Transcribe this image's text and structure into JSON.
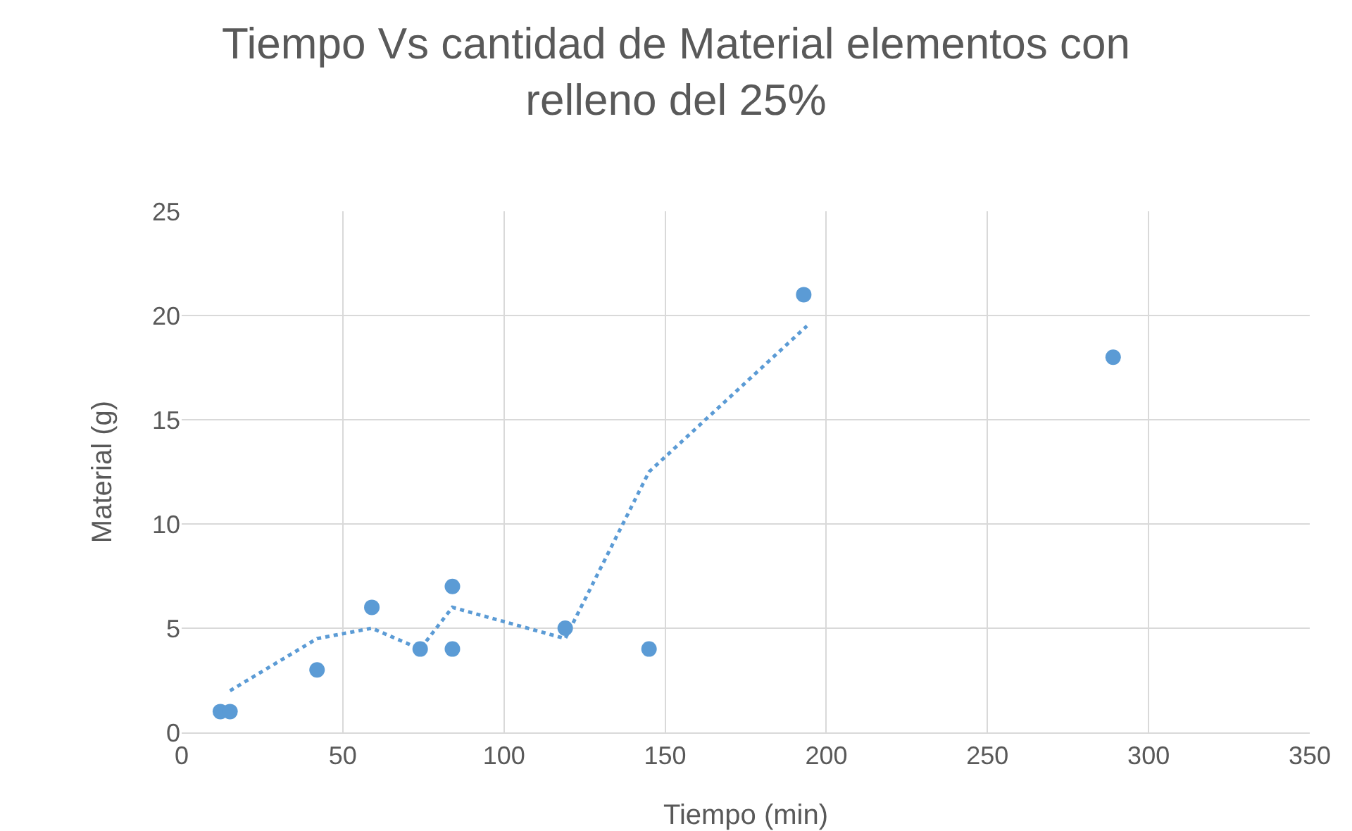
{
  "chart_data": {
    "type": "scatter",
    "title": "Tiempo Vs cantidad de Material elementos con relleno del 25%",
    "xlabel": "Tiempo (min)",
    "ylabel": "Material (g)",
    "xlim": [
      0,
      350
    ],
    "xticks": [
      0,
      50,
      100,
      150,
      200,
      250,
      300,
      350
    ],
    "ylim": [
      0,
      25
    ],
    "yticks": [
      0,
      5,
      10,
      15,
      20,
      25
    ],
    "grid": true,
    "marker": "circle",
    "series": [
      {
        "color": "#5b9bd5",
        "x": [
          12,
          15,
          42,
          59,
          74,
          84,
          84,
          119,
          145,
          193,
          289
        ],
        "values": [
          1,
          1,
          3,
          6,
          4,
          7,
          4,
          5,
          4,
          21,
          18
        ]
      },
      {
        "type": "line",
        "color": "#5b9bd5",
        "line_style": "dotted",
        "marker": "none",
        "x": [
          15,
          42,
          59,
          74,
          84,
          119,
          145,
          194
        ],
        "values": [
          2,
          4.5,
          5,
          4,
          6,
          4.5,
          12.5,
          19.5
        ]
      }
    ]
  }
}
